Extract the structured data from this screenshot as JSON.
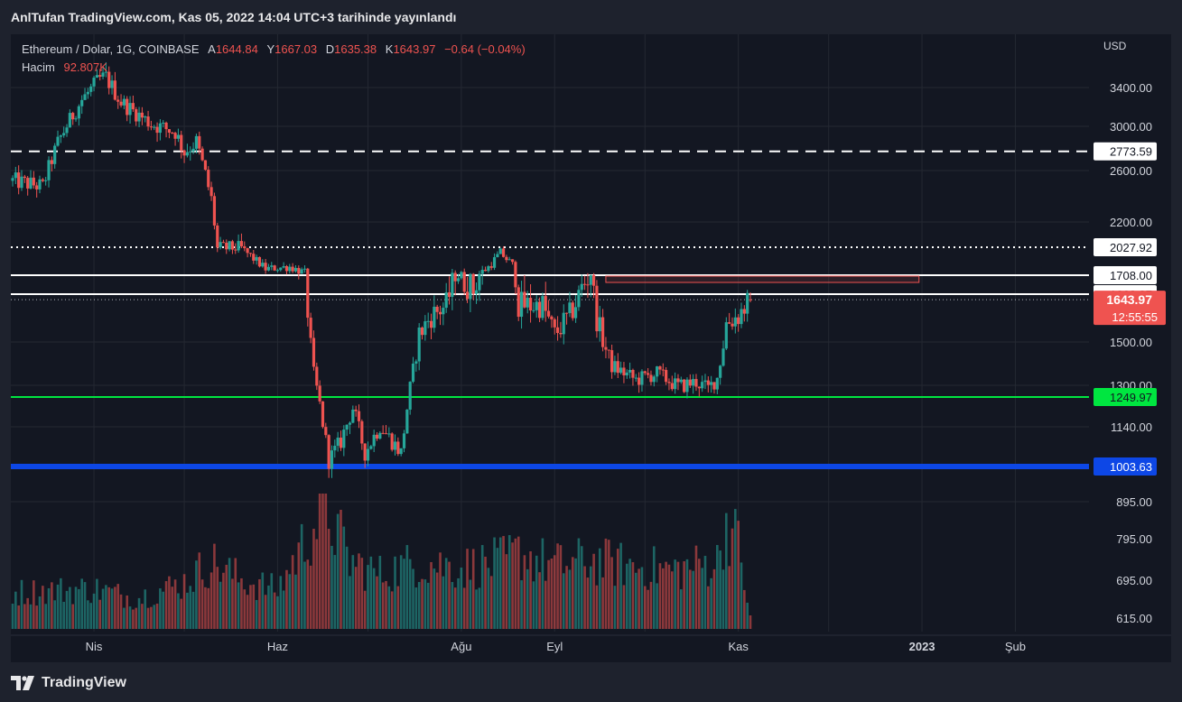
{
  "header": {
    "publish_text": "AnlTufan TradingView.com, Kas 05, 2022 14:04 UTC+3 tarihinde yayınlandı"
  },
  "legend": {
    "symbol": "Ethereum / Dolar, 1G, COINBASE",
    "open_label": "A",
    "open": "1644.84",
    "high_label": "Y",
    "high": "1667.03",
    "low_label": "D",
    "low": "1635.38",
    "close_label": "K",
    "close": "1643.97",
    "change": "−0.64 (−0.04%)",
    "volume_label": "Hacim",
    "volume": "92.807K"
  },
  "footer": {
    "brand": "TradingView"
  },
  "chart_data": {
    "type": "candlestick",
    "symbol": "ETH/USD",
    "currency_label": "USD",
    "price_axis_ticks": [
      "3400.00",
      "3000.00",
      "2600.00",
      "2200.00",
      "1708.00",
      "1500.00",
      "1300.00",
      "1140.00",
      "895.00",
      "795.00",
      "695.00",
      "615.00"
    ],
    "time_axis_ticks": [
      "Nis",
      "Haz",
      "Ağu",
      "Eyl",
      "Kas",
      "2023",
      "Şub"
    ],
    "time_axis_bold": [
      "2023"
    ],
    "colors": {
      "up": "#26a69a",
      "down": "#ef5350",
      "bg": "#131722",
      "grid": "#242832"
    },
    "horizontal_levels": [
      {
        "price": 2773.59,
        "label": "2773.59",
        "style": "dashed",
        "color": "#ffffff",
        "tag_bg": "#ffffff",
        "tag_fg": "#131722"
      },
      {
        "price": 2027.92,
        "label": "2027.92",
        "style": "dotted",
        "color": "#ffffff",
        "tag_bg": "#ffffff",
        "tag_fg": "#131722"
      },
      {
        "price": 1708.0,
        "label": "1708.00",
        "style": "solid",
        "color": "#ffffff",
        "tag_bg": "#ffffff",
        "tag_fg": "#131722"
      },
      {
        "price": 1662.87,
        "label": "1662.87",
        "style": "solid",
        "color": "#ffffff",
        "tag_bg": "#ffffff",
        "tag_fg": "#131722"
      },
      {
        "price": 1249.97,
        "label": "1249.97",
        "style": "solid",
        "color": "#00e640",
        "tag_bg": "#00e640",
        "tag_fg": "#131722"
      },
      {
        "price": 1003.63,
        "label": "1003.63",
        "style": "solid-thick",
        "color": "#0d47e6",
        "tag_bg": "#0d47e6",
        "tag_fg": "#ffffff"
      }
    ],
    "last_price": {
      "price": 1643.97,
      "label": "1643.97",
      "countdown": "12:55:55",
      "color": "#ef5350"
    },
    "resistance_zone": {
      "top": 1708.0,
      "bottom": 1688.0,
      "start": "2022-09-18",
      "end": "2022-12-31",
      "color": "#ef5350"
    },
    "ohlc_anchors": [
      [
        "2022-03-05",
        2650,
        2390
      ],
      [
        "2022-03-15",
        2560,
        2390
      ],
      [
        "2022-03-20",
        2900,
        2800
      ],
      [
        "2022-03-28",
        3300,
        3250
      ],
      [
        "2022-04-03",
        3520,
        3450
      ],
      [
        "2022-04-05",
        3520,
        3490
      ],
      [
        "2022-04-10",
        3200,
        3300
      ],
      [
        "2022-04-20",
        3050,
        3000
      ],
      [
        "2022-04-28",
        3000,
        2900
      ],
      [
        "2022-05-01",
        2800,
        2730
      ],
      [
        "2022-05-05",
        2940,
        2780
      ],
      [
        "2022-05-10",
        2350,
        2400
      ],
      [
        "2022-05-12",
        2050,
        1980
      ],
      [
        "2022-05-20",
        2000,
        2030
      ],
      [
        "2022-05-28",
        1800,
        1760
      ],
      [
        "2022-06-05",
        1800,
        1810
      ],
      [
        "2022-06-10",
        1700,
        1770
      ],
      [
        "2022-06-13",
        1250,
        1450
      ],
      [
        "2022-06-18",
        1000,
        1050
      ],
      [
        "2022-06-22",
        1100,
        1080
      ],
      [
        "2022-06-26",
        1200,
        1220
      ],
      [
        "2022-06-30",
        1040,
        1060
      ],
      [
        "2022-07-05",
        1140,
        1150
      ],
      [
        "2022-07-12",
        1040,
        1060
      ],
      [
        "2022-07-18",
        1550,
        1500
      ],
      [
        "2022-07-22",
        1580,
        1600
      ],
      [
        "2022-07-27",
        1650,
        1600
      ],
      [
        "2022-07-30",
        1730,
        1730
      ],
      [
        "2022-08-05",
        1650,
        1700
      ],
      [
        "2022-08-10",
        1850,
        1750
      ],
      [
        "2022-08-14",
        1980,
        1950
      ],
      [
        "2022-08-18",
        1850,
        1800
      ],
      [
        "2022-08-20",
        1600,
        1650
      ],
      [
        "2022-08-28",
        1650,
        1600
      ],
      [
        "2022-09-01",
        1500,
        1550
      ],
      [
        "2022-09-06",
        1600,
        1580
      ],
      [
        "2022-09-10",
        1700,
        1650
      ],
      [
        "2022-09-13",
        1750,
        1700
      ],
      [
        "2022-09-15",
        1560,
        1600
      ],
      [
        "2022-09-20",
        1380,
        1400
      ],
      [
        "2022-09-28",
        1320,
        1330
      ],
      [
        "2022-10-05",
        1360,
        1350
      ],
      [
        "2022-10-12",
        1290,
        1300
      ],
      [
        "2022-10-18",
        1320,
        1310
      ],
      [
        "2022-10-22",
        1290,
        1280
      ],
      [
        "2022-10-25",
        1340,
        1330
      ],
      [
        "2022-10-28",
        1580,
        1550
      ],
      [
        "2022-11-01",
        1600,
        1580
      ],
      [
        "2022-11-05",
        1644,
        1644
      ]
    ],
    "volume_profile_note_free": [
      [
        "2022-03-05",
        0.3
      ],
      [
        "2022-04-01",
        0.33
      ],
      [
        "2022-04-15",
        0.25
      ],
      [
        "2022-05-01",
        0.38
      ],
      [
        "2022-05-10",
        0.55
      ],
      [
        "2022-05-20",
        0.4
      ],
      [
        "2022-06-01",
        0.32
      ],
      [
        "2022-06-13",
        0.85
      ],
      [
        "2022-06-18",
        0.95
      ],
      [
        "2022-06-25",
        0.55
      ],
      [
        "2022-07-05",
        0.45
      ],
      [
        "2022-07-18",
        0.55
      ],
      [
        "2022-08-01",
        0.5
      ],
      [
        "2022-08-14",
        0.55
      ],
      [
        "2022-08-20",
        0.62
      ],
      [
        "2022-09-01",
        0.52
      ],
      [
        "2022-09-13",
        0.56
      ],
      [
        "2022-09-25",
        0.52
      ],
      [
        "2022-10-10",
        0.48
      ],
      [
        "2022-10-25",
        0.55
      ],
      [
        "2022-10-28",
        0.88
      ],
      [
        "2022-11-01",
        0.7
      ],
      [
        "2022-11-05",
        0.1
      ]
    ]
  }
}
